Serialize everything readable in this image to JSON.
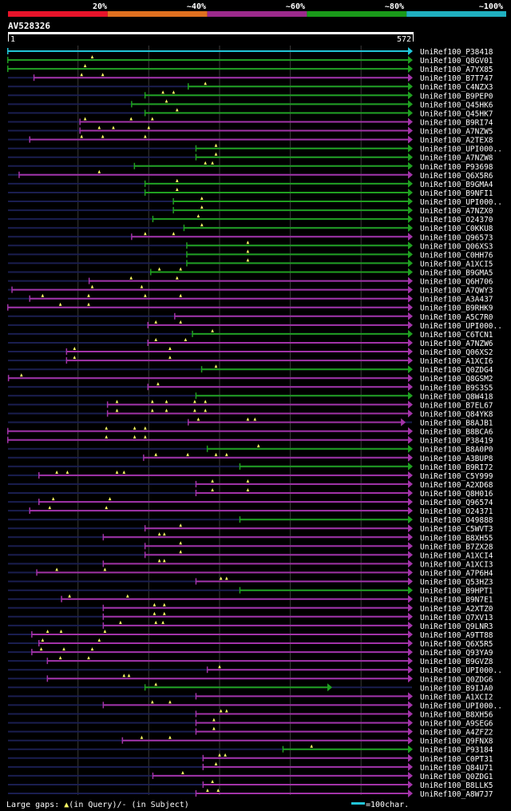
{
  "chart_data": {
    "type": "alignment-map",
    "query_id": "AV528326",
    "ruler": {
      "start": "1",
      "end": "572"
    },
    "query_length": 572,
    "scale_labels": [
      "20%",
      "~40%",
      "~60%",
      "~80%",
      "~100%"
    ],
    "identity_bins": [
      {
        "range": "<=20%",
        "color": "#e8132a"
      },
      {
        "range": "20-40%",
        "color": "#e07020"
      },
      {
        "range": "40-60%",
        "color": "#9c2a8c"
      },
      {
        "range": "60-80%",
        "color": "#1a9a1a"
      },
      {
        "range": "80-100%",
        "color": "#20b0c0"
      }
    ],
    "colors": {
      "cyan": "#22c5d8",
      "green": "#20a020",
      "purple": "#a233a8",
      "navy": "#1a1e50"
    },
    "hits": [
      {
        "id": "UniRef100_P38418",
        "start": 1,
        "end": 572,
        "c": "cyan",
        "gaps": []
      },
      {
        "id": "UniRef100_Q8GV01",
        "start": 1,
        "end": 572,
        "c": "green",
        "gaps": [
          120
        ]
      },
      {
        "id": "UniRef100_A7YX85",
        "start": 1,
        "end": 572,
        "c": "green",
        "gaps": [
          110
        ]
      },
      {
        "id": "UniRef100_B7T747",
        "start": 38,
        "end": 572,
        "c": "purple",
        "gaps": [
          105,
          135
        ]
      },
      {
        "id": "UniRef100_C4NZX3",
        "start": 256,
        "end": 572,
        "c": "green",
        "gaps": [
          280
        ]
      },
      {
        "id": "UniRef100_B9PEP0",
        "start": 195,
        "end": 572,
        "c": "green",
        "gaps": [
          220,
          235
        ]
      },
      {
        "id": "UniRef100_Q45HK6",
        "start": 176,
        "end": 572,
        "c": "green",
        "gaps": [
          225
        ]
      },
      {
        "id": "UniRef100_Q45HK7",
        "start": 195,
        "end": 572,
        "c": "green",
        "gaps": [
          240
        ]
      },
      {
        "id": "UniRef100_B9RI74",
        "start": 103,
        "end": 572,
        "c": "purple",
        "gaps": [
          110,
          175,
          205
        ]
      },
      {
        "id": "UniRef100_A7NZW5",
        "start": 103,
        "end": 572,
        "c": "purple",
        "gaps": [
          130,
          150,
          200
        ]
      },
      {
        "id": "UniRef100_A2TEX8",
        "start": 32,
        "end": 572,
        "c": "purple",
        "gaps": [
          105,
          135,
          195
        ]
      },
      {
        "id": "UniRef100_UPI000..",
        "start": 267,
        "end": 572,
        "c": "green",
        "gaps": [
          295
        ]
      },
      {
        "id": "UniRef100_A7NZW8",
        "start": 267,
        "end": 572,
        "c": "green",
        "gaps": [
          295
        ]
      },
      {
        "id": "UniRef100_P93698",
        "start": 180,
        "end": 572,
        "c": "green",
        "gaps": [
          280,
          290
        ]
      },
      {
        "id": "UniRef100_Q6X5R6",
        "start": 17,
        "end": 572,
        "c": "purple",
        "gaps": [
          130
        ]
      },
      {
        "id": "UniRef100_B9GMA4",
        "start": 195,
        "end": 572,
        "c": "green",
        "gaps": [
          240
        ]
      },
      {
        "id": "UniRef100_B9NFI1",
        "start": 195,
        "end": 572,
        "c": "green",
        "gaps": [
          240
        ]
      },
      {
        "id": "UniRef100_UPI000..",
        "start": 235,
        "end": 572,
        "c": "green",
        "gaps": [
          275
        ]
      },
      {
        "id": "UniRef100_A7NZX0",
        "start": 235,
        "end": 572,
        "c": "green",
        "gaps": [
          275
        ]
      },
      {
        "id": "UniRef100_O24370",
        "start": 206,
        "end": 572,
        "c": "green",
        "gaps": [
          270
        ]
      },
      {
        "id": "UniRef100_C0KKU8",
        "start": 250,
        "end": 572,
        "c": "green",
        "gaps": [
          275
        ]
      },
      {
        "id": "UniRef100_Q96573",
        "start": 176,
        "end": 572,
        "c": "purple",
        "gaps": [
          195,
          235
        ]
      },
      {
        "id": "UniRef100_Q06XS3",
        "start": 254,
        "end": 572,
        "c": "green",
        "gaps": [
          340
        ]
      },
      {
        "id": "UniRef100_C0HH76",
        "start": 254,
        "end": 572,
        "c": "green",
        "gaps": [
          340
        ]
      },
      {
        "id": "UniRef100_A1XCI5",
        "start": 254,
        "end": 572,
        "c": "green",
        "gaps": [
          340
        ]
      },
      {
        "id": "UniRef100_B9GMA5",
        "start": 203,
        "end": 572,
        "c": "green",
        "gaps": [
          215,
          245
        ]
      },
      {
        "id": "UniRef100_Q6H706",
        "start": 116,
        "end": 572,
        "c": "purple",
        "gaps": [
          175,
          240
        ]
      },
      {
        "id": "UniRef100_A7QWY3",
        "start": 7,
        "end": 572,
        "c": "purple",
        "gaps": [
          120,
          190
        ]
      },
      {
        "id": "UniRef100_A3A437",
        "start": 32,
        "end": 572,
        "c": "purple",
        "gaps": [
          50,
          115,
          195,
          245
        ]
      },
      {
        "id": "UniRef100_B9RHK9",
        "start": 1,
        "end": 572,
        "c": "purple",
        "gaps": [
          75,
          115
        ]
      },
      {
        "id": "UniRef100_A5C7R0",
        "start": 237,
        "end": 572,
        "c": "purple",
        "gaps": []
      },
      {
        "id": "UniRef100_UPI000..",
        "start": 199,
        "end": 572,
        "c": "purple",
        "gaps": [
          210,
          245
        ]
      },
      {
        "id": "UniRef100_C6TCN1",
        "start": 262,
        "end": 572,
        "c": "green",
        "gaps": [
          290
        ]
      },
      {
        "id": "UniRef100_A7NZW6",
        "start": 199,
        "end": 572,
        "c": "purple",
        "gaps": [
          210,
          252
        ]
      },
      {
        "id": "UniRef100_Q06XS2",
        "start": 84,
        "end": 572,
        "c": "purple",
        "gaps": [
          95,
          230
        ]
      },
      {
        "id": "UniRef100_A1XCI6",
        "start": 84,
        "end": 572,
        "c": "purple",
        "gaps": [
          95,
          230
        ]
      },
      {
        "id": "UniRef100_Q0ZDG4",
        "start": 275,
        "end": 572,
        "c": "green",
        "gaps": [
          295
        ]
      },
      {
        "id": "UniRef100_Q8GSM2",
        "start": 2,
        "end": 572,
        "c": "purple",
        "gaps": [
          20
        ]
      },
      {
        "id": "UniRef100_B9S3S5",
        "start": 199,
        "end": 572,
        "c": "purple",
        "gaps": [
          213
        ]
      },
      {
        "id": "UniRef100_Q8W418",
        "start": 267,
        "end": 572,
        "c": "green",
        "gaps": []
      },
      {
        "id": "UniRef100_B7EL67",
        "start": 142,
        "end": 572,
        "c": "purple",
        "gaps": [
          155,
          205,
          225,
          265,
          280
        ]
      },
      {
        "id": "UniRef100_Q84YK8",
        "start": 142,
        "end": 572,
        "c": "purple",
        "gaps": [
          155,
          205,
          225,
          265,
          280
        ]
      },
      {
        "id": "UniRef100_B8AJB1",
        "start": 256,
        "end": 562,
        "c": "purple",
        "gaps": [
          270,
          340,
          350
        ]
      },
      {
        "id": "UniRef100_B8BCA6",
        "start": 1,
        "end": 572,
        "c": "purple",
        "gaps": [
          140,
          180,
          195
        ]
      },
      {
        "id": "UniRef100_P38419",
        "start": 1,
        "end": 572,
        "c": "purple",
        "gaps": [
          140,
          180,
          195
        ]
      },
      {
        "id": "UniRef100_B8A0P0",
        "start": 283,
        "end": 572,
        "c": "green",
        "gaps": [
          355
        ]
      },
      {
        "id": "UniRef100_A3BUP8",
        "start": 193,
        "end": 572,
        "c": "purple",
        "gaps": [
          210,
          255,
          295,
          310
        ]
      },
      {
        "id": "UniRef100_B9RI72",
        "start": 329,
        "end": 572,
        "c": "green",
        "gaps": []
      },
      {
        "id": "UniRef100_C5Y999",
        "start": 45,
        "end": 572,
        "c": "purple",
        "gaps": [
          70,
          85,
          155,
          165
        ]
      },
      {
        "id": "UniRef100_A2XD68",
        "start": 267,
        "end": 572,
        "c": "purple",
        "gaps": [
          290,
          340
        ]
      },
      {
        "id": "UniRef100_Q8H016",
        "start": 267,
        "end": 572,
        "c": "purple",
        "gaps": [
          290,
          340
        ]
      },
      {
        "id": "UniRef100_Q96574",
        "start": 45,
        "end": 572,
        "c": "purple",
        "gaps": [
          65,
          145
        ]
      },
      {
        "id": "UniRef100_O24371",
        "start": 32,
        "end": 572,
        "c": "purple",
        "gaps": [
          60,
          140
        ]
      },
      {
        "id": "UniRef100_O49888",
        "start": 329,
        "end": 572,
        "c": "green",
        "gaps": []
      },
      {
        "id": "UniRef100_C5WVT3",
        "start": 195,
        "end": 572,
        "c": "purple",
        "gaps": [
          245
        ]
      },
      {
        "id": "UniRef100_B8XH55",
        "start": 136,
        "end": 572,
        "c": "purple",
        "gaps": [
          215,
          222
        ]
      },
      {
        "id": "UniRef100_B7ZX28",
        "start": 195,
        "end": 572,
        "c": "purple",
        "gaps": [
          245
        ]
      },
      {
        "id": "UniRef100_A1XCI4",
        "start": 195,
        "end": 572,
        "c": "purple",
        "gaps": [
          245
        ]
      },
      {
        "id": "UniRef100_A1XCI3",
        "start": 136,
        "end": 572,
        "c": "purple",
        "gaps": [
          215,
          222
        ]
      },
      {
        "id": "UniRef100_A7P6H4",
        "start": 42,
        "end": 572,
        "c": "purple",
        "gaps": [
          70,
          138
        ]
      },
      {
        "id": "UniRef100_Q53HZ3",
        "start": 267,
        "end": 572,
        "c": "purple",
        "gaps": [
          302,
          310
        ]
      },
      {
        "id": "UniRef100_B9HPT1",
        "start": 329,
        "end": 572,
        "c": "green",
        "gaps": []
      },
      {
        "id": "UniRef100_B9N7E1",
        "start": 77,
        "end": 572,
        "c": "purple",
        "gaps": [
          88,
          170
        ]
      },
      {
        "id": "UniRef100_A2XTZ0",
        "start": 136,
        "end": 572,
        "c": "purple",
        "gaps": [
          208,
          222
        ]
      },
      {
        "id": "UniRef100_Q7XV13",
        "start": 136,
        "end": 572,
        "c": "purple",
        "gaps": [
          208,
          222
        ]
      },
      {
        "id": "UniRef100_Q9LNR3",
        "start": 136,
        "end": 572,
        "c": "purple",
        "gaps": [
          160,
          210,
          220
        ]
      },
      {
        "id": "UniRef100_A9TT88",
        "start": 35,
        "end": 572,
        "c": "purple",
        "gaps": [
          57,
          76,
          138
        ]
      },
      {
        "id": "UniRef100_Q6X5R5",
        "start": 45,
        "end": 572,
        "c": "purple",
        "gaps": [
          50,
          130
        ]
      },
      {
        "id": "UniRef100_Q93YA9",
        "start": 35,
        "end": 572,
        "c": "purple",
        "gaps": [
          48,
          80,
          120
        ]
      },
      {
        "id": "UniRef100_B9GVZ8",
        "start": 57,
        "end": 572,
        "c": "purple",
        "gaps": [
          75,
          115
        ]
      },
      {
        "id": "UniRef100_UPI000..",
        "start": 283,
        "end": 572,
        "c": "purple",
        "gaps": [
          300
        ]
      },
      {
        "id": "UniRef100_Q0ZDG6",
        "start": 57,
        "end": 572,
        "c": "purple",
        "gaps": [
          165,
          172
        ]
      },
      {
        "id": "UniRef100_B9IJA0",
        "start": 195,
        "end": 458,
        "c": "green",
        "gaps": [
          210
        ]
      },
      {
        "id": "UniRef100_A1XCI2",
        "start": 267,
        "end": 572,
        "c": "purple",
        "gaps": []
      },
      {
        "id": "UniRef100_UPI000..",
        "start": 136,
        "end": 572,
        "c": "purple",
        "gaps": [
          205,
          230
        ]
      },
      {
        "id": "UniRef100_B8XH56",
        "start": 267,
        "end": 572,
        "c": "purple",
        "gaps": [
          302,
          310
        ]
      },
      {
        "id": "UniRef100_A9SEG6",
        "start": 267,
        "end": 572,
        "c": "purple",
        "gaps": [
          292
        ]
      },
      {
        "id": "UniRef100_A4ZFZ2",
        "start": 267,
        "end": 572,
        "c": "purple",
        "gaps": [
          292
        ]
      },
      {
        "id": "UniRef100_Q9FNX8",
        "start": 163,
        "end": 572,
        "c": "purple",
        "gaps": [
          190,
          230
        ]
      },
      {
        "id": "UniRef100_P93184",
        "start": 390,
        "end": 572,
        "c": "green",
        "gaps": [
          430
        ]
      },
      {
        "id": "UniRef100_C0PT31",
        "start": 277,
        "end": 572,
        "c": "purple",
        "gaps": [
          300,
          308
        ]
      },
      {
        "id": "UniRef100_Q84U71",
        "start": 277,
        "end": 572,
        "c": "purple",
        "gaps": [
          295
        ]
      },
      {
        "id": "UniRef100_Q0ZDG1",
        "start": 206,
        "end": 572,
        "c": "purple",
        "gaps": [
          248
        ]
      },
      {
        "id": "UniRef100_B8LLK5",
        "start": 277,
        "end": 572,
        "c": "purple",
        "gaps": [
          290
        ]
      },
      {
        "id": "UniRef100_A8W7J7",
        "start": 267,
        "end": 572,
        "c": "purple",
        "gaps": [
          283,
          298
        ]
      }
    ],
    "legend": {
      "gap_text": "Large gaps: ",
      "query_text": "(in Query)/",
      "subject_text": "- (in Subject)",
      "scale_text": "=100char."
    }
  }
}
